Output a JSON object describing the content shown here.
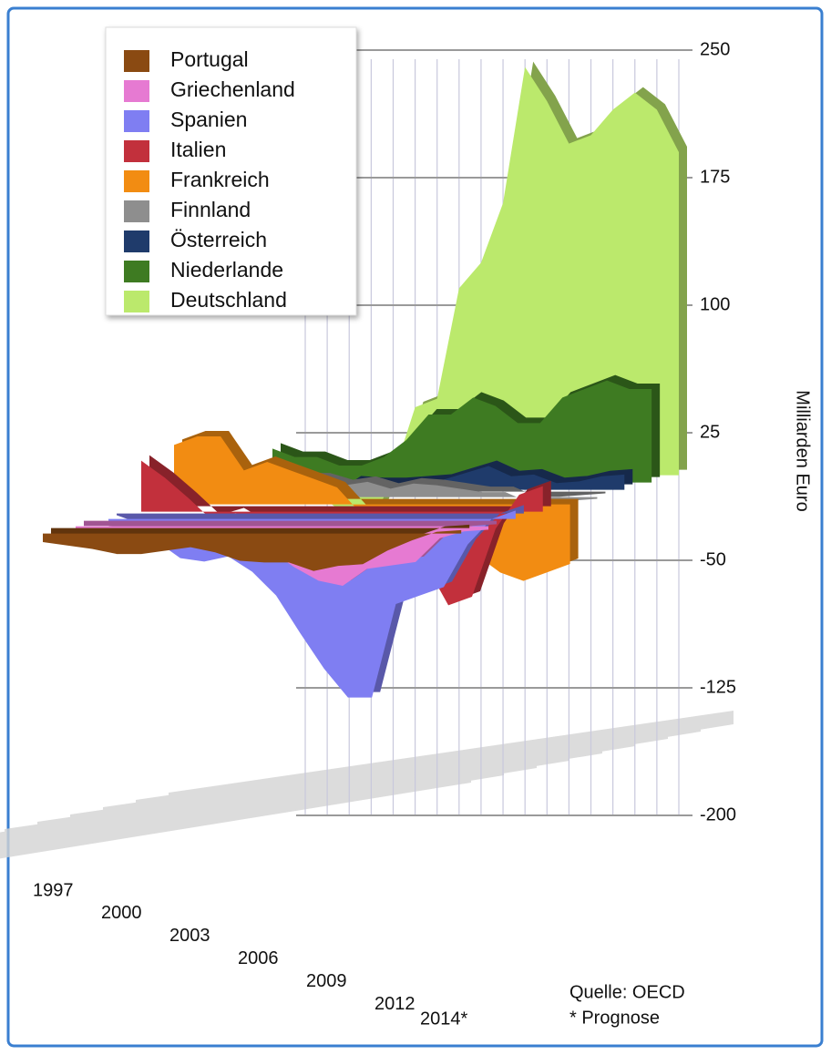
{
  "chart_data": {
    "type": "area3d",
    "y_label": "Milliarden Euro",
    "source": "Quelle: OECD",
    "note": "* Prognose",
    "categories": [
      "1997",
      null,
      null,
      "2000",
      null,
      null,
      "2003",
      null,
      null,
      "2006",
      null,
      null,
      "2009",
      null,
      null,
      "2012",
      null,
      "2014*"
    ],
    "ylim": [
      -200,
      250
    ],
    "yticks": [
      250,
      175,
      100,
      25,
      -50,
      -125,
      -200
    ],
    "grid": true,
    "legend": "top-left",
    "series": [
      {
        "name": "Portugal",
        "color": "#8a4a12",
        "values": [
          -5,
          -7,
          -9,
          -12,
          -12,
          -10,
          -8,
          -11,
          -16,
          -17,
          -17,
          -22,
          -19,
          -18,
          -10,
          -4,
          1,
          2
        ]
      },
      {
        "name": "Griechenland",
        "color": "#e67ad2",
        "values": [
          -3,
          -3,
          -5,
          -8,
          -8,
          -7,
          -9,
          -10,
          -14,
          -24,
          -32,
          -35,
          -25,
          -23,
          -21,
          -7,
          -3,
          -2
        ]
      },
      {
        "name": "Spanien",
        "color": "#7f7ef2",
        "values": [
          -1,
          -6,
          -13,
          -23,
          -25,
          -22,
          -31,
          -45,
          -67,
          -88,
          -105,
          -105,
          -50,
          -45,
          -40,
          -15,
          0,
          5
        ]
      },
      {
        "name": "Italien",
        "color": "#c2303c",
        "values": [
          30,
          20,
          8,
          -5,
          -1,
          -9,
          -16,
          -15,
          -23,
          -30,
          -36,
          -45,
          -30,
          -55,
          -50,
          -10,
          10,
          15
        ]
      },
      {
        "name": "Frankreich",
        "color": "#f28c12",
        "values": [
          35,
          40,
          40,
          20,
          25,
          20,
          15,
          10,
          -5,
          -10,
          -20,
          -25,
          -25,
          -30,
          -40,
          -45,
          -40,
          -35
        ]
      },
      {
        "name": "Finnland",
        "color": "#8e8e8e",
        "values": [
          7,
          8,
          9,
          11,
          11,
          11,
          7,
          9,
          5,
          8,
          7,
          5,
          3,
          3,
          -3,
          -3,
          -2,
          -1
        ]
      },
      {
        "name": "Österreich",
        "color": "#1f3b6b",
        "values": [
          -5,
          -5,
          -3,
          -4,
          -4,
          5,
          4,
          4,
          5,
          6,
          10,
          14,
          8,
          9,
          4,
          5,
          8,
          9
        ]
      },
      {
        "name": "Niederlande",
        "color": "#3e7b22",
        "values": [
          20,
          15,
          15,
          10,
          10,
          15,
          25,
          40,
          40,
          50,
          45,
          35,
          35,
          50,
          55,
          60,
          55,
          55
        ]
      },
      {
        "name": "Deutschland",
        "color": "#bbe96c",
        "values": [
          -10,
          -15,
          -25,
          -30,
          0,
          40,
          45,
          110,
          125,
          160,
          240,
          220,
          195,
          200,
          215,
          225,
          215,
          190
        ]
      }
    ]
  }
}
